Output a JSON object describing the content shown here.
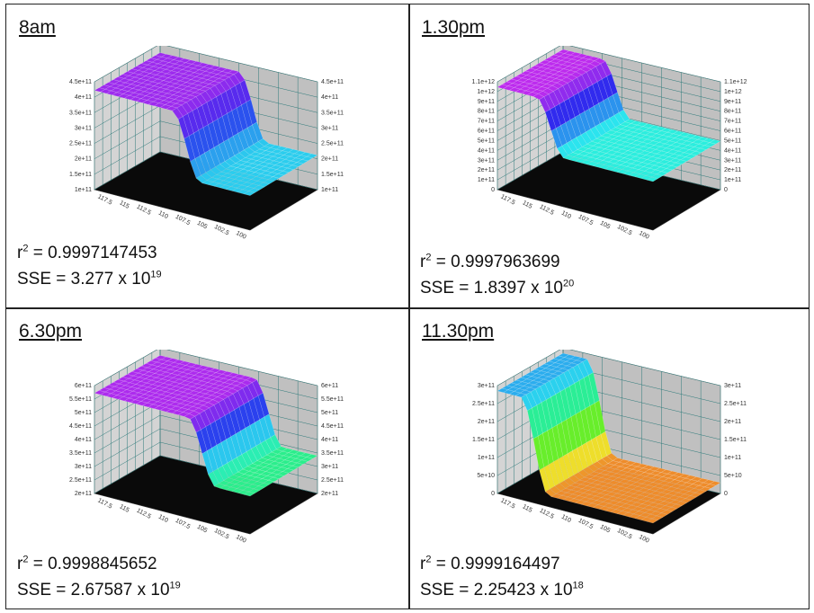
{
  "panels": [
    {
      "title": "8am",
      "r2_prefix": "r",
      "r2_value": " = 0.9997147453",
      "sse_prefix": "SSE = 3.277 x 10",
      "sse_exp": "19",
      "z_ticks_left": [
        "4.5e+11",
        "4e+11",
        "3.5e+11",
        "3e+11",
        "2.5e+11",
        "2e+11",
        "1.5e+11",
        "1e+11"
      ],
      "z_ticks_right": [
        "4.5e+11",
        "4e+11",
        "3.5e+11",
        "3e+11",
        "2.5e+11",
        "2e+11",
        "1.5e+11",
        "1e+11"
      ],
      "x_ticks": [
        "117.5",
        "115",
        "112.5",
        "110",
        "107.5",
        "105",
        "102.5",
        "100"
      ],
      "surface": {
        "base": 0.32,
        "high": 0.92,
        "drop": 0.5,
        "hue_low": 190,
        "hue_high": 275
      }
    },
    {
      "title": "1.30pm",
      "r2_prefix": "r",
      "r2_value": " = 0.9997963699",
      "sse_prefix": "SSE = 1.8397 x 10",
      "sse_exp": "20",
      "z_ticks_left": [
        "1.1e+12",
        "1e+12",
        "9e+11",
        "8e+11",
        "7e+11",
        "6e+11",
        "5e+11",
        "4e+11",
        "3e+11",
        "2e+11",
        "1e+11",
        "0"
      ],
      "z_ticks_right": [
        "1.1e+12",
        "1e+12",
        "9e+11",
        "8e+11",
        "7e+11",
        "6e+11",
        "5e+11",
        "4e+11",
        "3e+11",
        "2e+11",
        "1e+11",
        "0"
      ],
      "x_ticks": [
        "117.5",
        "115",
        "112.5",
        "110",
        "107.5",
        "105",
        "102.5",
        "100"
      ],
      "surface": {
        "base": 0.45,
        "high": 0.95,
        "drop": 0.25,
        "hue_low": 175,
        "hue_high": 285
      }
    },
    {
      "title": "6.30pm",
      "r2_prefix": "r",
      "r2_value": " = 0.9998845652",
      "sse_prefix": "SSE = 2.67587 x 10",
      "sse_exp": "19",
      "z_ticks_left": [
        "6e+11",
        "5.5e+11",
        "5e+11",
        "4.5e+11",
        "4e+11",
        "3.5e+11",
        "3e+11",
        "2.5e+11",
        "2e+11"
      ],
      "z_ticks_right": [
        "6e+11",
        "5.5e+11",
        "5e+11",
        "4.5e+11",
        "4e+11",
        "3.5e+11",
        "3e+11",
        "2.5e+11",
        "2e+11"
      ],
      "x_ticks": [
        "117.5",
        "115",
        "112.5",
        "110",
        "107.5",
        "105",
        "102.5",
        "100"
      ],
      "surface": {
        "base": 0.35,
        "high": 0.93,
        "drop": 0.6,
        "hue_low": 150,
        "hue_high": 280
      }
    },
    {
      "title": "11.30pm",
      "r2_prefix": "r",
      "r2_value": " = 0.9999164497",
      "sse_prefix": "SSE = 2.25423 x 10",
      "sse_exp": "18",
      "z_ticks_left": [
        "3e+11",
        "2.5e+11",
        "2e+11",
        "1.5e+11",
        "1e+11",
        "5e+10",
        "0"
      ],
      "z_ticks_right": [
        "3e+11",
        "2.5e+11",
        "2e+11",
        "1.5e+11",
        "1e+11",
        "5e+10",
        "0"
      ],
      "x_ticks": [
        "117.5",
        "115",
        "112.5",
        "110",
        "107.5",
        "105",
        "102.5",
        "100"
      ],
      "surface": {
        "base": 0.1,
        "high": 0.95,
        "drop": 0.15,
        "hue_low": 30,
        "hue_high": 200
      }
    }
  ],
  "chart_data": [
    {
      "type": "surface3d",
      "title": "8am",
      "r2": 0.9997147453,
      "sse": 3.277e+19,
      "z_range": [
        100000000000.0,
        450000000000.0
      ],
      "x_range": [
        100,
        117.5
      ]
    },
    {
      "type": "surface3d",
      "title": "1.30pm",
      "r2": 0.9997963699,
      "sse": 1.8397e+20,
      "z_range": [
        0,
        1100000000000.0
      ],
      "x_range": [
        100,
        117.5
      ]
    },
    {
      "type": "surface3d",
      "title": "6.30pm",
      "r2": 0.9998845652,
      "sse": 2.67587e+19,
      "z_range": [
        200000000000.0,
        600000000000.0
      ],
      "x_range": [
        100,
        117.5
      ]
    },
    {
      "type": "surface3d",
      "title": "11.30pm",
      "r2": 0.9999164497,
      "sse": 2.25423e+18,
      "z_range": [
        0,
        300000000000.0
      ],
      "x_range": [
        100,
        117.5
      ]
    }
  ]
}
